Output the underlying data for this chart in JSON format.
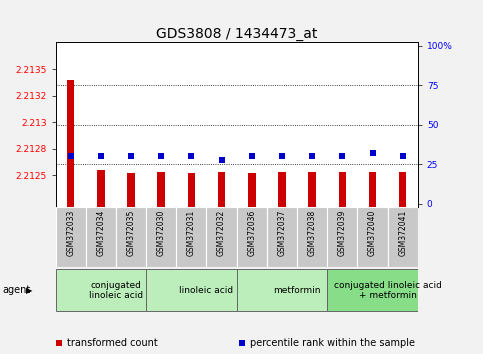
{
  "title": "GDS3808 / 1434473_at",
  "samples": [
    "GSM372033",
    "GSM372034",
    "GSM372035",
    "GSM372030",
    "GSM372031",
    "GSM372032",
    "GSM372036",
    "GSM372037",
    "GSM372038",
    "GSM372039",
    "GSM372040",
    "GSM372041"
  ],
  "transformed_count": [
    2.2134,
    2.21255,
    2.21252,
    2.21253,
    2.21252,
    2.21253,
    2.21252,
    2.21253,
    2.21253,
    2.21253,
    2.21253,
    2.21253
  ],
  "percentile_rank": [
    30,
    30,
    30,
    30,
    30,
    28,
    30,
    30,
    30,
    30,
    32,
    30
  ],
  "ylim_left": [
    2.2122,
    2.21375
  ],
  "ylim_right": [
    -2,
    102
  ],
  "yticks_left": [
    2.2125,
    2.21275,
    2.213,
    2.21325,
    2.2135
  ],
  "yticks_right": [
    0,
    25,
    50,
    75,
    100
  ],
  "grid_pcts": [
    25,
    50,
    75
  ],
  "agent_groups": [
    {
      "label": "conjugated\nlinoleic acid",
      "start": 0,
      "end": 3,
      "color": "#bbeebb"
    },
    {
      "label": "linoleic acid",
      "start": 3,
      "end": 6,
      "color": "#bbeebb"
    },
    {
      "label": "metformin",
      "start": 6,
      "end": 9,
      "color": "#bbeebb"
    },
    {
      "label": "conjugated linoleic acid\n+ metformin",
      "start": 9,
      "end": 12,
      "color": "#88dd88"
    }
  ],
  "bar_color": "#cc0000",
  "dot_color": "#0000cc",
  "fig_bg": "#f2f2f2",
  "plot_bg": "#ffffff",
  "sample_box_color": "#c8c8c8",
  "title_fontsize": 10,
  "tick_fontsize": 6.5,
  "agent_fontsize": 6.5,
  "legend_fontsize": 7,
  "agent_label": "agent"
}
